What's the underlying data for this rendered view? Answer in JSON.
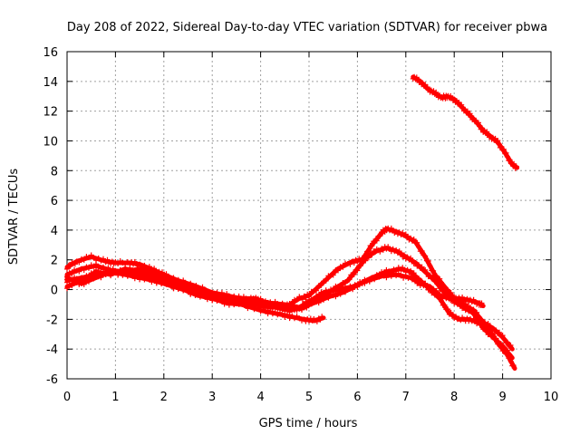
{
  "chart_data": {
    "type": "scatter",
    "title": "Day 208 of 2022, Sidereal Day-to-day VTEC variation (SDTVAR) for receiver pbwa",
    "xlabel": "GPS time / hours",
    "ylabel": "SDTVAR / TECUs",
    "xlim": [
      0,
      10
    ],
    "ylim": [
      -6,
      16
    ],
    "x_ticks": [
      0,
      1,
      2,
      3,
      4,
      5,
      6,
      7,
      8,
      9,
      10
    ],
    "y_ticks": [
      -6,
      -4,
      -2,
      0,
      2,
      4,
      6,
      8,
      10,
      12,
      14,
      16
    ],
    "grid": true,
    "marker": "+",
    "color": "#ff0000",
    "series": [
      {
        "name": "track-1",
        "points": [
          [
            0.0,
            1.5
          ],
          [
            0.2,
            1.9
          ],
          [
            0.5,
            2.2
          ],
          [
            0.8,
            1.9
          ],
          [
            1.0,
            1.8
          ],
          [
            1.3,
            1.8
          ],
          [
            1.5,
            1.7
          ],
          [
            1.8,
            1.3
          ],
          [
            2.0,
            1.0
          ],
          [
            2.3,
            0.6
          ],
          [
            2.6,
            0.3
          ],
          [
            3.0,
            -0.2
          ],
          [
            3.3,
            -0.4
          ],
          [
            3.6,
            -0.6
          ],
          [
            3.9,
            -0.6
          ],
          [
            4.2,
            -1.0
          ],
          [
            4.5,
            -1.2
          ],
          [
            4.8,
            -0.6
          ],
          [
            5.0,
            -0.4
          ],
          [
            5.3,
            0.5
          ],
          [
            5.6,
            1.4
          ],
          [
            5.9,
            1.9
          ],
          [
            6.1,
            2.0
          ],
          [
            6.3,
            3.0
          ],
          [
            6.5,
            3.8
          ],
          [
            6.6,
            4.1
          ],
          [
            6.8,
            3.9
          ],
          [
            7.0,
            3.6
          ],
          [
            7.2,
            3.2
          ],
          [
            7.4,
            2.2
          ],
          [
            7.6,
            1.0
          ],
          [
            7.8,
            0.2
          ],
          [
            8.0,
            -0.6
          ],
          [
            8.2,
            -1.0
          ],
          [
            8.4,
            -1.4
          ],
          [
            8.6,
            -2.2
          ],
          [
            8.8,
            -2.6
          ],
          [
            9.0,
            -3.2
          ],
          [
            9.2,
            -4.0
          ]
        ]
      },
      {
        "name": "track-2",
        "points": [
          [
            0.0,
            1.0
          ],
          [
            0.3,
            1.4
          ],
          [
            0.6,
            1.6
          ],
          [
            0.9,
            1.3
          ],
          [
            1.2,
            1.2
          ],
          [
            1.5,
            1.4
          ],
          [
            1.8,
            1.0
          ],
          [
            2.1,
            0.7
          ],
          [
            2.4,
            0.3
          ],
          [
            2.7,
            0.0
          ],
          [
            3.0,
            -0.4
          ],
          [
            3.3,
            -0.6
          ],
          [
            3.7,
            -0.8
          ],
          [
            4.0,
            -1.0
          ],
          [
            4.3,
            -1.2
          ],
          [
            4.6,
            -1.4
          ],
          [
            4.9,
            -1.2
          ],
          [
            5.2,
            -0.6
          ],
          [
            5.5,
            0.0
          ],
          [
            5.8,
            0.6
          ],
          [
            6.0,
            1.4
          ],
          [
            6.2,
            2.2
          ],
          [
            6.4,
            2.6
          ],
          [
            6.6,
            2.8
          ],
          [
            6.8,
            2.6
          ],
          [
            7.0,
            2.2
          ],
          [
            7.2,
            1.8
          ],
          [
            7.4,
            1.2
          ],
          [
            7.6,
            0.6
          ],
          [
            7.8,
            -0.2
          ],
          [
            8.0,
            -0.8
          ],
          [
            8.2,
            -1.2
          ],
          [
            8.4,
            -1.6
          ],
          [
            8.6,
            -2.6
          ],
          [
            8.8,
            -3.2
          ],
          [
            9.0,
            -3.8
          ],
          [
            9.2,
            -4.6
          ]
        ]
      },
      {
        "name": "track-3",
        "points": [
          [
            0.0,
            0.6
          ],
          [
            0.3,
            0.8
          ],
          [
            0.6,
            1.0
          ],
          [
            0.9,
            1.2
          ],
          [
            1.2,
            1.0
          ],
          [
            1.5,
            0.8
          ],
          [
            1.8,
            0.6
          ],
          [
            2.1,
            0.3
          ],
          [
            2.4,
            0.0
          ],
          [
            2.7,
            -0.3
          ],
          [
            3.0,
            -0.6
          ],
          [
            3.3,
            -0.9
          ],
          [
            3.6,
            -1.0
          ],
          [
            4.0,
            -1.4
          ],
          [
            4.3,
            -1.6
          ],
          [
            4.6,
            -1.8
          ],
          [
            4.9,
            -2.0
          ],
          [
            5.1,
            -2.1
          ],
          [
            5.3,
            -1.9
          ]
        ]
      },
      {
        "name": "track-4",
        "points": [
          [
            0.0,
            0.2
          ],
          [
            0.3,
            0.6
          ],
          [
            0.6,
            1.2
          ],
          [
            0.9,
            1.0
          ],
          [
            1.2,
            1.4
          ],
          [
            1.5,
            1.2
          ],
          [
            1.8,
            0.8
          ],
          [
            2.1,
            0.4
          ],
          [
            2.4,
            0.2
          ],
          [
            2.7,
            -0.2
          ],
          [
            3.0,
            -0.4
          ],
          [
            3.3,
            -0.6
          ],
          [
            3.6,
            -0.8
          ],
          [
            3.9,
            -0.7
          ],
          [
            4.2,
            -0.9
          ],
          [
            4.5,
            -1.0
          ],
          [
            4.8,
            -1.2
          ],
          [
            5.0,
            -0.8
          ],
          [
            5.3,
            -0.2
          ],
          [
            5.6,
            0.0
          ],
          [
            5.9,
            0.2
          ],
          [
            6.2,
            0.6
          ],
          [
            6.5,
            0.9
          ],
          [
            6.8,
            1.0
          ],
          [
            7.1,
            0.8
          ],
          [
            7.3,
            0.4
          ],
          [
            7.5,
            0.2
          ],
          [
            7.7,
            -0.4
          ],
          [
            7.9,
            -0.6
          ],
          [
            8.1,
            -0.6
          ],
          [
            8.3,
            -0.7
          ],
          [
            8.5,
            -0.9
          ],
          [
            8.6,
            -1.1
          ]
        ]
      },
      {
        "name": "track-5",
        "points": [
          [
            0.0,
            0.8
          ],
          [
            0.3,
            0.4
          ],
          [
            0.6,
            0.8
          ],
          [
            0.9,
            1.2
          ],
          [
            1.2,
            1.0
          ],
          [
            1.5,
            1.1
          ],
          [
            1.8,
            0.7
          ],
          [
            2.1,
            0.3
          ],
          [
            2.4,
            0.0
          ],
          [
            2.7,
            -0.4
          ],
          [
            3.0,
            -0.6
          ],
          [
            3.3,
            -0.8
          ],
          [
            3.6,
            -1.0
          ],
          [
            3.9,
            -1.0
          ],
          [
            4.2,
            -1.2
          ],
          [
            4.5,
            -1.1
          ],
          [
            4.8,
            -1.3
          ],
          [
            5.1,
            -0.9
          ],
          [
            5.4,
            -0.5
          ],
          [
            5.7,
            -0.2
          ],
          [
            6.0,
            0.3
          ],
          [
            6.3,
            0.8
          ],
          [
            6.6,
            1.2
          ],
          [
            6.9,
            1.4
          ],
          [
            7.1,
            1.2
          ],
          [
            7.3,
            0.6
          ],
          [
            7.5,
            0.0
          ],
          [
            7.7,
            -0.6
          ],
          [
            7.9,
            -1.6
          ],
          [
            8.1,
            -2.0
          ],
          [
            8.3,
            -2.0
          ],
          [
            8.5,
            -2.2
          ],
          [
            8.7,
            -2.6
          ],
          [
            8.9,
            -3.6
          ],
          [
            9.1,
            -4.4
          ],
          [
            9.25,
            -5.3
          ]
        ]
      },
      {
        "name": "track-6",
        "points": [
          [
            7.15,
            14.3
          ],
          [
            7.3,
            14.0
          ],
          [
            7.45,
            13.5
          ],
          [
            7.6,
            13.2
          ],
          [
            7.75,
            12.9
          ],
          [
            7.85,
            13.0
          ],
          [
            8.0,
            12.8
          ],
          [
            8.15,
            12.3
          ],
          [
            8.3,
            11.8
          ],
          [
            8.45,
            11.3
          ],
          [
            8.6,
            10.7
          ],
          [
            8.75,
            10.3
          ],
          [
            8.9,
            9.9
          ],
          [
            9.05,
            9.2
          ],
          [
            9.2,
            8.4
          ],
          [
            9.3,
            8.2
          ]
        ]
      }
    ]
  }
}
